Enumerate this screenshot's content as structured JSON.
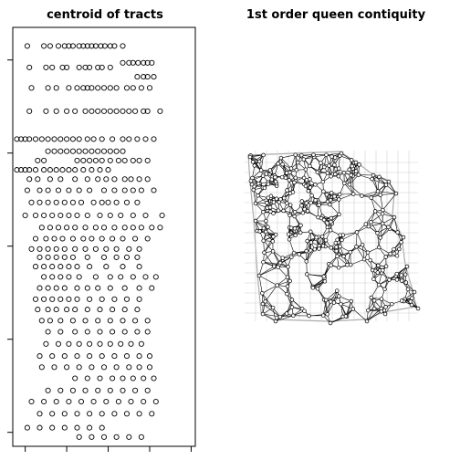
{
  "chart_data": [
    {
      "type": "scatter",
      "title": "centroid of tracts",
      "marker": "open-circle",
      "axes": "box with unlabeled ticks",
      "xticks": [
        0,
        1,
        2,
        3,
        4
      ],
      "yticks": [
        0,
        1,
        2,
        3,
        4
      ],
      "xlim": [
        -0.3,
        4.1
      ],
      "ylim": [
        -0.15,
        4.35
      ],
      "rows": [
        {
          "y": 4.15,
          "x": [
            0.05,
            0.45,
            0.6,
            0.8,
            0.95,
            1.05,
            1.15,
            1.3,
            1.4,
            1.5,
            1.6,
            1.7,
            1.82,
            1.92,
            2.05,
            2.15,
            2.35
          ]
        },
        {
          "y": 3.97,
          "x": [
            2.35,
            2.5,
            2.6,
            2.72,
            2.85,
            2.95,
            3.05
          ]
        },
        {
          "y": 3.92,
          "x": [
            0.1,
            0.5,
            0.65,
            0.9,
            1.0,
            1.3,
            1.45,
            1.55,
            1.75,
            1.85,
            2.05
          ]
        },
        {
          "y": 3.82,
          "x": [
            2.7,
            2.85,
            2.95,
            3.1
          ]
        },
        {
          "y": 3.7,
          "x": [
            0.15,
            0.55,
            0.75,
            1.05,
            1.25,
            1.4,
            1.5,
            1.6,
            1.75,
            1.9,
            2.05,
            2.2,
            2.45,
            2.6,
            2.8,
            3.0
          ]
        },
        {
          "y": 3.45,
          "x": [
            0.1,
            0.5,
            0.75,
            1.0,
            1.2,
            1.45,
            1.6,
            1.75,
            1.9,
            2.05,
            2.2,
            2.35,
            2.5,
            2.65,
            2.85,
            2.95,
            3.25
          ]
        },
        {
          "y": 3.15,
          "x": [
            -0.2,
            -0.1,
            0.0,
            0.1,
            0.25,
            0.4,
            0.55,
            0.7,
            0.85,
            1.0,
            1.15,
            1.3,
            1.5,
            1.65,
            1.85,
            2.1,
            2.35,
            2.5,
            2.7,
            2.9,
            3.1
          ]
        },
        {
          "y": 3.02,
          "x": [
            0.55,
            0.7,
            0.85,
            1.0,
            1.15,
            1.3,
            1.45,
            1.6,
            1.75,
            1.9,
            2.05,
            2.2,
            2.35
          ]
        },
        {
          "y": 2.92,
          "x": [
            0.3,
            0.45,
            1.25,
            1.4,
            1.55,
            1.7,
            1.85,
            2.05,
            2.25,
            2.4,
            2.6,
            2.75,
            2.95
          ]
        },
        {
          "y": 2.82,
          "x": [
            -0.2,
            -0.1,
            0.0,
            0.1,
            0.25,
            0.45,
            0.6,
            0.75,
            0.9,
            1.05,
            1.2,
            1.4,
            1.6,
            1.8,
            2.0
          ]
        },
        {
          "y": 2.72,
          "x": [
            0.1,
            0.3,
            0.6,
            0.85,
            1.2,
            1.5,
            1.75,
            1.95,
            2.15,
            2.4,
            2.55,
            2.75,
            2.95
          ]
        },
        {
          "y": 2.6,
          "x": [
            0.05,
            0.35,
            0.55,
            0.8,
            1.05,
            1.3,
            1.55,
            1.9,
            2.15,
            2.4,
            2.6,
            2.8,
            3.1
          ]
        },
        {
          "y": 2.47,
          "x": [
            0.15,
            0.35,
            0.55,
            0.75,
            0.95,
            1.15,
            1.35,
            1.65,
            1.85,
            2.0,
            2.2,
            2.45,
            2.7
          ]
        },
        {
          "y": 2.33,
          "x": [
            0.0,
            0.25,
            0.45,
            0.65,
            0.85,
            1.05,
            1.25,
            1.5,
            1.8,
            2.05,
            2.3,
            2.6,
            2.9,
            3.3
          ]
        },
        {
          "y": 2.2,
          "x": [
            0.4,
            0.6,
            0.8,
            1.0,
            1.2,
            1.45,
            1.7,
            1.9,
            2.15,
            2.4,
            2.6,
            2.8,
            3.05,
            3.25
          ]
        },
        {
          "y": 2.08,
          "x": [
            0.25,
            0.5,
            0.7,
            0.9,
            1.15,
            1.4,
            1.6,
            1.85,
            2.1,
            2.35,
            2.65,
            2.95
          ]
        },
        {
          "y": 1.97,
          "x": [
            0.15,
            0.35,
            0.55,
            0.75,
            0.95,
            1.2,
            1.45,
            1.7,
            1.95,
            2.2,
            2.5,
            2.75
          ]
        },
        {
          "y": 1.88,
          "x": [
            0.35,
            0.55,
            0.75,
            0.95,
            1.15,
            1.5,
            1.9,
            2.2,
            2.45,
            2.7
          ]
        },
        {
          "y": 1.78,
          "x": [
            0.25,
            0.45,
            0.65,
            0.85,
            1.05,
            1.25,
            1.55,
            1.95,
            2.35,
            2.75
          ]
        },
        {
          "y": 1.67,
          "x": [
            0.45,
            0.65,
            0.85,
            1.05,
            1.3,
            1.7,
            2.05,
            2.3,
            2.6,
            2.9,
            3.15
          ]
        },
        {
          "y": 1.55,
          "x": [
            0.35,
            0.55,
            0.75,
            0.95,
            1.25,
            1.5,
            1.75,
            2.05,
            2.4,
            2.75,
            3.05
          ]
        },
        {
          "y": 1.43,
          "x": [
            0.25,
            0.45,
            0.65,
            0.85,
            1.05,
            1.25,
            1.55,
            1.85,
            2.15,
            2.45,
            2.75
          ]
        },
        {
          "y": 1.32,
          "x": [
            0.3,
            0.55,
            0.75,
            1.0,
            1.2,
            1.5,
            1.8,
            2.1,
            2.4,
            2.7
          ]
        },
        {
          "y": 1.2,
          "x": [
            0.4,
            0.6,
            0.85,
            1.15,
            1.45,
            1.75,
            2.05,
            2.35,
            2.65,
            2.95
          ]
        },
        {
          "y": 1.08,
          "x": [
            0.55,
            0.85,
            1.2,
            1.5,
            1.8,
            2.1,
            2.4,
            2.7,
            2.95
          ]
        },
        {
          "y": 0.95,
          "x": [
            0.5,
            0.8,
            1.05,
            1.3,
            1.55,
            1.8,
            2.05,
            2.3,
            2.55,
            2.8
          ]
        },
        {
          "y": 0.82,
          "x": [
            0.35,
            0.65,
            0.95,
            1.25,
            1.55,
            1.85,
            2.15,
            2.45,
            2.75,
            3.0
          ]
        },
        {
          "y": 0.7,
          "x": [
            0.4,
            0.7,
            1.0,
            1.3,
            1.6,
            1.9,
            2.2,
            2.5,
            2.75,
            3.0
          ]
        },
        {
          "y": 0.58,
          "x": [
            1.2,
            1.5,
            1.8,
            2.1,
            2.35,
            2.6,
            2.85,
            3.1
          ]
        },
        {
          "y": 0.45,
          "x": [
            0.55,
            0.85,
            1.15,
            1.45,
            1.75,
            2.05,
            2.35,
            2.65,
            2.95
          ]
        },
        {
          "y": 0.33,
          "x": [
            0.15,
            0.45,
            0.75,
            1.05,
            1.35,
            1.65,
            1.95,
            2.25,
            2.55,
            2.85,
            3.15
          ]
        },
        {
          "y": 0.2,
          "x": [
            0.35,
            0.65,
            0.95,
            1.25,
            1.55,
            1.85,
            2.15,
            2.45,
            2.75,
            3.05
          ]
        },
        {
          "y": 0.05,
          "x": [
            0.05,
            0.35,
            0.65,
            0.95,
            1.25,
            1.55,
            1.85
          ]
        },
        {
          "y": -0.05,
          "x": [
            1.3,
            1.6,
            1.9,
            2.2,
            2.5,
            2.8
          ]
        }
      ]
    },
    {
      "type": "diagram",
      "title": "1st order queen contiquity",
      "description_of_marks": "Neighbor network drawn over tract outlines: open-circle nodes at tract centroids connected by black line segments",
      "map_outline_color": "#aaaaaa",
      "edge_color": "#000000",
      "node_style": "open-circle"
    }
  ]
}
